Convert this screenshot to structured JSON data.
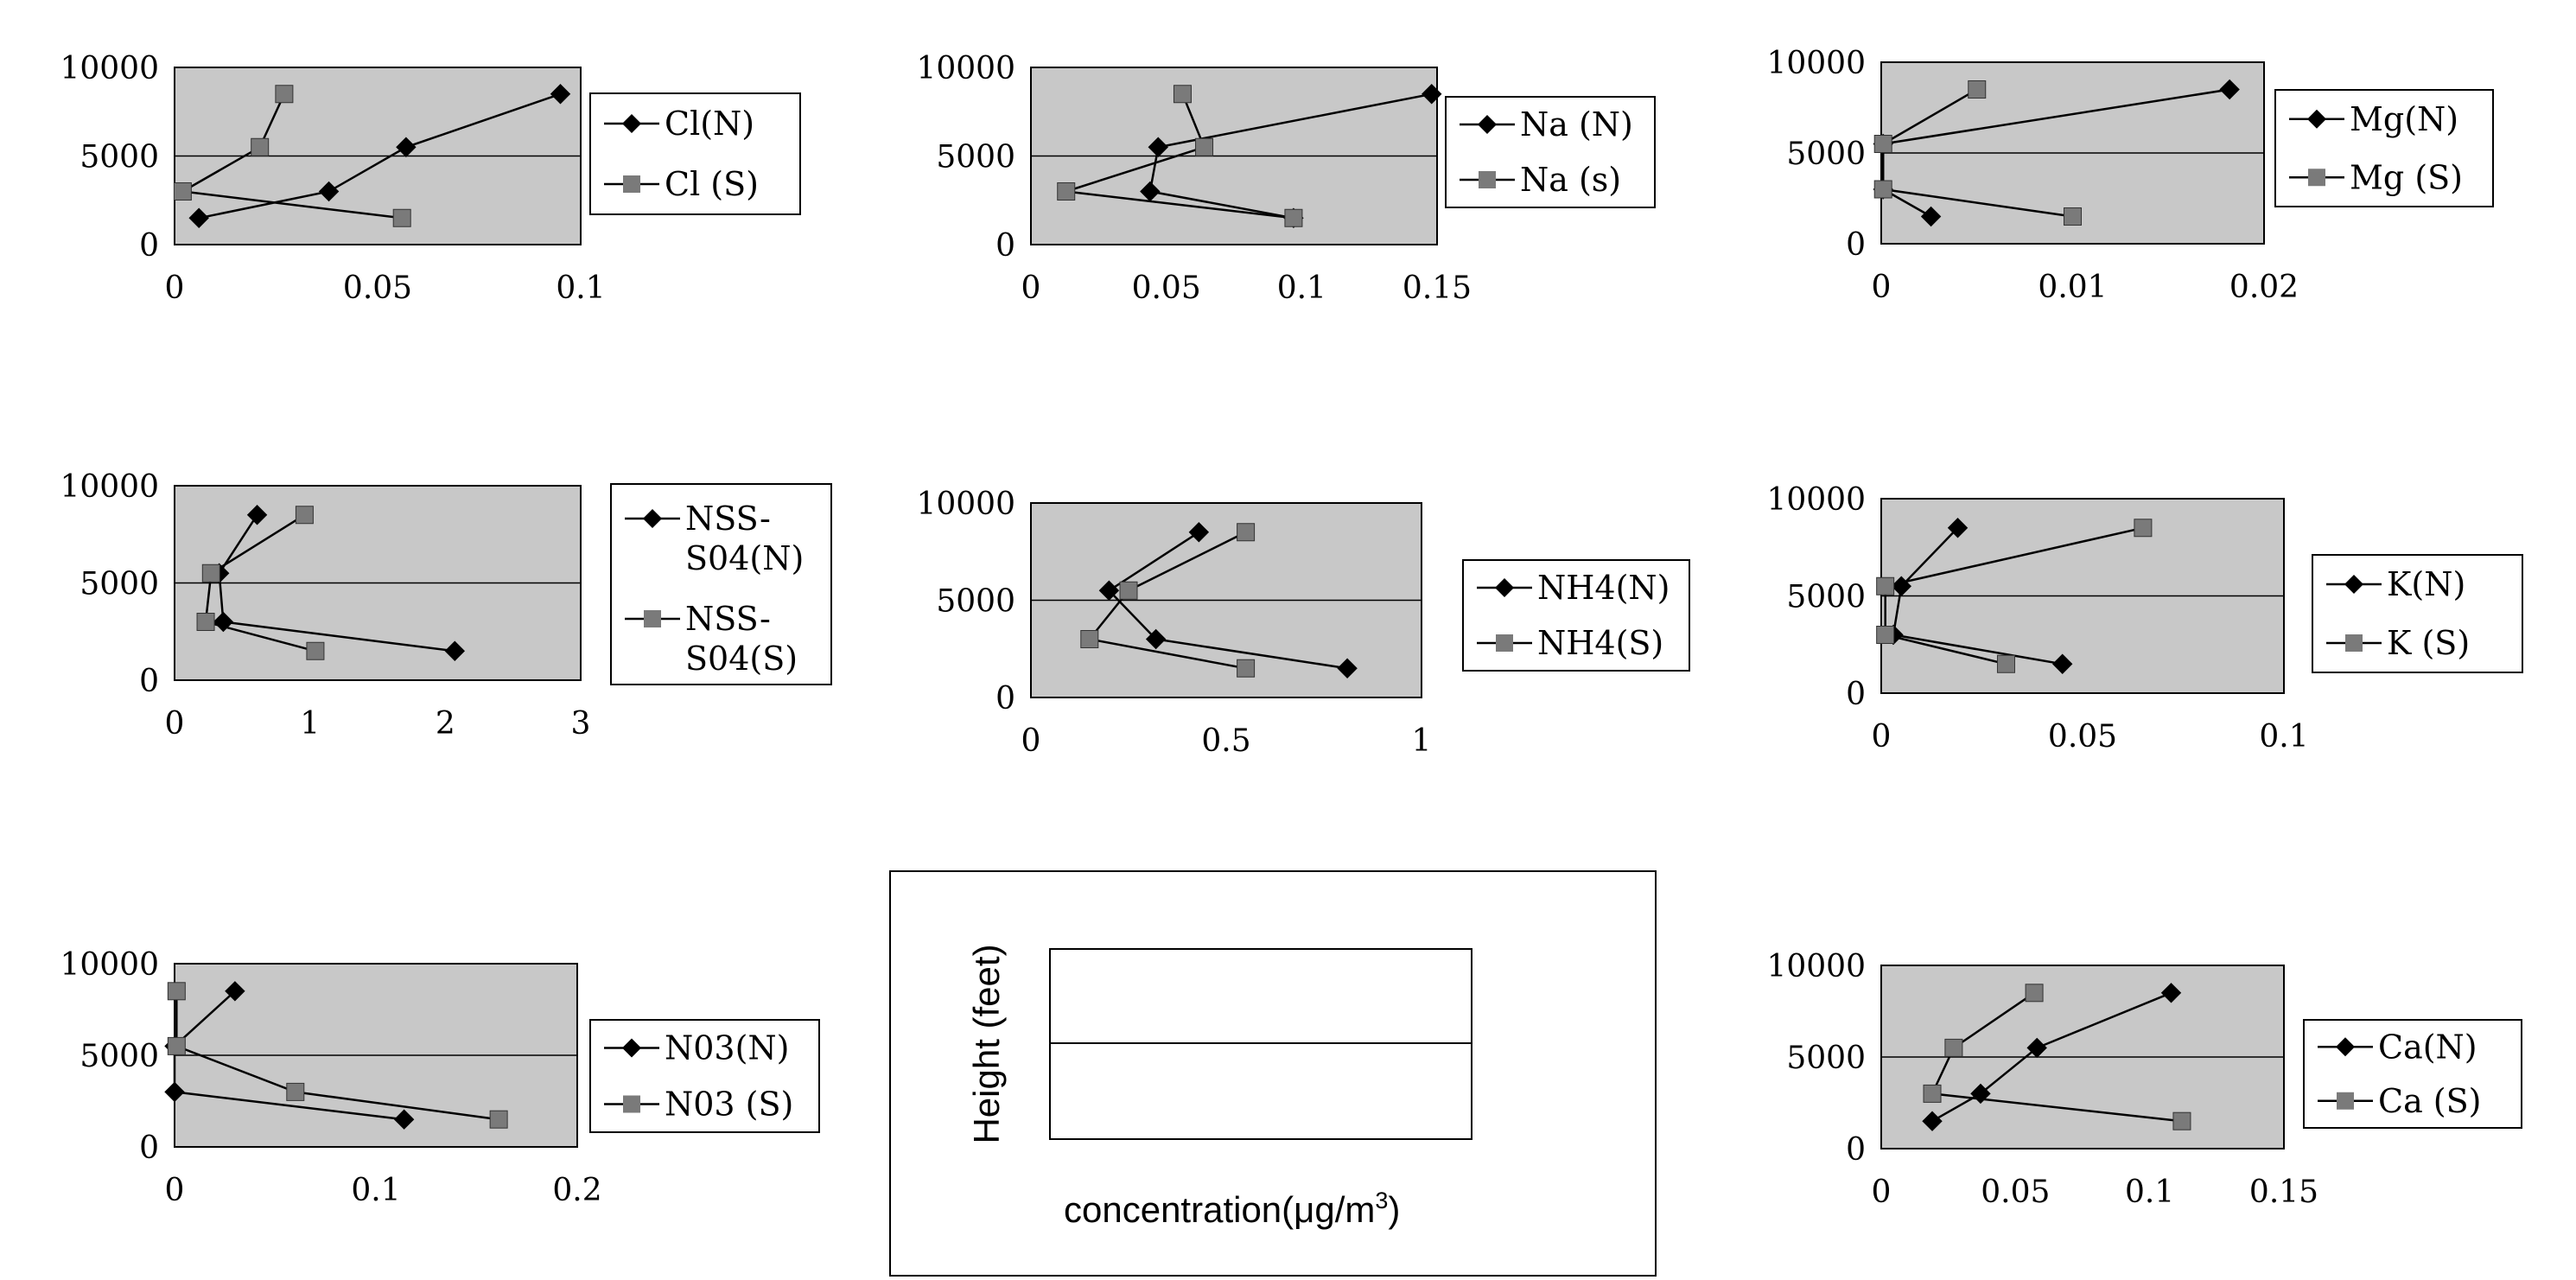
{
  "common": {
    "plot_bg": "#c8c8c8",
    "marker_n": "#000000",
    "marker_s": "#7a7a7a",
    "y_ticks": [
      "0",
      "5000",
      "10000"
    ],
    "ylim": [
      0,
      10000
    ]
  },
  "chart_data": [
    {
      "type": "line",
      "xlim": [
        0,
        0.1
      ],
      "x_ticks": [
        "0",
        "0.05",
        "0.1"
      ],
      "ylim": [
        0,
        10000
      ],
      "legend": "right",
      "series": [
        {
          "name": "Cl(N)",
          "points": [
            [
              0.095,
              8500
            ],
            [
              0.057,
              5500
            ],
            [
              0.038,
              3000
            ],
            [
              0.006,
              1500
            ]
          ]
        },
        {
          "name": "Cl (S)",
          "points": [
            [
              0.027,
              8500
            ],
            [
              0.021,
              5500
            ],
            [
              0.002,
              3000
            ],
            [
              0.056,
              1500
            ]
          ]
        }
      ]
    },
    {
      "type": "line",
      "xlim": [
        0,
        0.15
      ],
      "x_ticks": [
        "0",
        "0.05",
        "0.1",
        "0.15"
      ],
      "ylim": [
        0,
        10000
      ],
      "legend": "right",
      "series": [
        {
          "name": "Na (N)",
          "points": [
            [
              0.148,
              8500
            ],
            [
              0.047,
              5500
            ],
            [
              0.044,
              3000
            ],
            [
              0.097,
              1500
            ]
          ]
        },
        {
          "name": "Na (s)",
          "points": [
            [
              0.056,
              8500
            ],
            [
              0.064,
              5500
            ],
            [
              0.013,
              3000
            ],
            [
              0.097,
              1500
            ]
          ]
        }
      ]
    },
    {
      "type": "line",
      "xlim": [
        0,
        0.02
      ],
      "x_ticks": [
        "0",
        "0.01",
        "0.02"
      ],
      "ylim": [
        0,
        10000
      ],
      "legend": "right",
      "series": [
        {
          "name": "Mg(N)",
          "points": [
            [
              0.0182,
              8500
            ],
            [
              0.0001,
              5500
            ],
            [
              0.0001,
              3000
            ],
            [
              0.0026,
              1500
            ]
          ]
        },
        {
          "name": "Mg (S)",
          "points": [
            [
              0.005,
              8500
            ],
            [
              0.0001,
              5500
            ],
            [
              0.0001,
              3000
            ],
            [
              0.01,
              1500
            ]
          ]
        }
      ]
    },
    {
      "type": "line",
      "xlim": [
        0,
        3
      ],
      "x_ticks": [
        "0",
        "1",
        "2",
        "3"
      ],
      "ylim": [
        0,
        10000
      ],
      "legend": "right",
      "series": [
        {
          "name": "NSS- S04(N)",
          "points": [
            [
              0.61,
              8500
            ],
            [
              0.33,
              5500
            ],
            [
              0.36,
              3000
            ],
            [
              2.07,
              1500
            ]
          ]
        },
        {
          "name": "NSS- S04(S)",
          "points": [
            [
              0.96,
              8500
            ],
            [
              0.27,
              5500
            ],
            [
              0.23,
              3000
            ],
            [
              1.04,
              1500
            ]
          ]
        }
      ]
    },
    {
      "type": "line",
      "xlim": [
        0,
        1
      ],
      "x_ticks": [
        "0",
        "0.5",
        "1"
      ],
      "ylim": [
        0,
        10000
      ],
      "legend": "right",
      "series": [
        {
          "name": "NH4(N)",
          "points": [
            [
              0.43,
              8500
            ],
            [
              0.2,
              5500
            ],
            [
              0.32,
              3000
            ],
            [
              0.81,
              1500
            ]
          ]
        },
        {
          "name": "NH4(S)",
          "points": [
            [
              0.55,
              8500
            ],
            [
              0.25,
              5500
            ],
            [
              0.15,
              3000
            ],
            [
              0.55,
              1500
            ]
          ]
        }
      ]
    },
    {
      "type": "line",
      "xlim": [
        0,
        0.1
      ],
      "x_ticks": [
        "0",
        "0.05",
        "0.1"
      ],
      "ylim": [
        0,
        10000
      ],
      "legend": "right",
      "series": [
        {
          "name": "K(N)",
          "points": [
            [
              0.019,
              8500
            ],
            [
              0.005,
              5500
            ],
            [
              0.003,
              3000
            ],
            [
              0.045,
              1500
            ]
          ]
        },
        {
          "name": "K (S)",
          "points": [
            [
              0.065,
              8500
            ],
            [
              0.001,
              5500
            ],
            [
              0.001,
              3000
            ],
            [
              0.031,
              1500
            ]
          ]
        }
      ]
    },
    {
      "type": "line",
      "xlim": [
        0,
        0.2
      ],
      "x_ticks": [
        "0",
        "0.1",
        "0.2"
      ],
      "ylim": [
        0,
        10000
      ],
      "legend": "right",
      "series": [
        {
          "name": "N03(N)",
          "points": [
            [
              0.03,
              8500
            ],
            [
              0.0,
              5500
            ],
            [
              0.0,
              3000
            ],
            [
              0.114,
              1500
            ]
          ]
        },
        {
          "name": "N03 (S)",
          "points": [
            [
              0.001,
              8500
            ],
            [
              0.001,
              5500
            ],
            [
              0.06,
              3000
            ],
            [
              0.161,
              1500
            ]
          ]
        }
      ]
    },
    {
      "type": "line",
      "xlim": [
        0,
        0.15
      ],
      "x_ticks": [
        "0",
        "0.05",
        "0.1",
        "0.15"
      ],
      "ylim": [
        0,
        10000
      ],
      "legend": "right",
      "series": [
        {
          "name": "Ca(N)",
          "points": [
            [
              0.108,
              8500
            ],
            [
              0.058,
              5500
            ],
            [
              0.037,
              3000
            ],
            [
              0.019,
              1500
            ]
          ]
        },
        {
          "name": "Ca (S)",
          "points": [
            [
              0.057,
              8500
            ],
            [
              0.027,
              5500
            ],
            [
              0.019,
              3000
            ],
            [
              0.112,
              1500
            ]
          ]
        }
      ]
    }
  ],
  "key_panel": {
    "ylabel": "Height (feet)",
    "xlabel": "concentration(μg/m",
    "xlabel_sup": "3",
    "xlabel_end": ")"
  }
}
